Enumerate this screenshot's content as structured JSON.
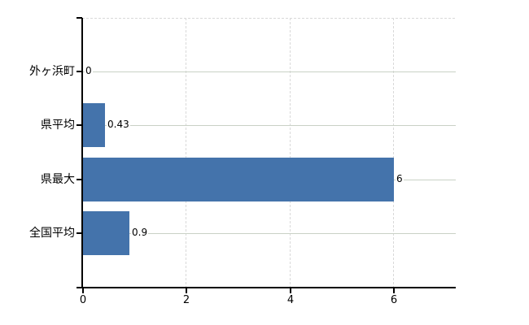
{
  "chart_data": {
    "type": "bar",
    "orientation": "horizontal",
    "title": "",
    "xlabel": "",
    "ylabel": "",
    "categories": [
      "外ヶ浜町",
      "県平均",
      "県最大",
      "全国平均"
    ],
    "values": [
      0,
      0.43,
      6,
      0.9
    ],
    "value_labels": [
      "0",
      "0.43",
      "6",
      "0.9"
    ],
    "xlim": [
      0,
      7.2
    ],
    "xticks": [
      0,
      2,
      4,
      6
    ],
    "xtick_labels": [
      "0",
      "2",
      "4",
      "6"
    ],
    "grid": true,
    "legend": "none",
    "colors": {
      "bar": "#4473ab",
      "axis": "#000000",
      "dashed_grid": "#d9d9d9",
      "row_line": "#c9d1c6",
      "text": "#000000",
      "background": "#ffffff"
    }
  }
}
